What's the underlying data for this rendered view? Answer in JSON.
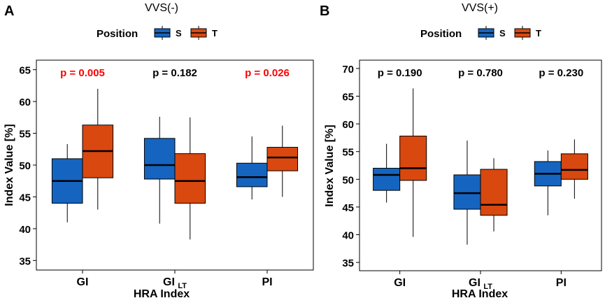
{
  "colors": {
    "S": "#1565c0",
    "T": "#d9480f",
    "sig": "#ff0000",
    "nonsig": "#000000",
    "frame": "#000000",
    "median": "#000000"
  },
  "chart_data": [
    {
      "type": "box",
      "panel_label": "A",
      "title": "VVS(-)",
      "legend_title": "Position",
      "legend": [
        {
          "key": "S",
          "label": "S"
        },
        {
          "key": "T",
          "label": "T"
        }
      ],
      "xlabel": "HRA Index",
      "ylabel": "Index Value [%]",
      "ylim": [
        33.5,
        66.5
      ],
      "yticks": [
        35,
        40,
        45,
        50,
        55,
        60,
        65
      ],
      "categories": [
        {
          "label": "GI",
          "sub": ""
        },
        {
          "label": "GI",
          "sub": "LT"
        },
        {
          "label": "PI",
          "sub": ""
        }
      ],
      "pvalues": [
        {
          "text": "p = 0.005",
          "sig": true
        },
        {
          "text": "p = 0.182",
          "sig": false
        },
        {
          "text": "p = 0.026",
          "sig": true
        }
      ],
      "series": [
        {
          "name": "S",
          "boxes": [
            {
              "min": 41.0,
              "q1": 44.0,
              "median": 47.5,
              "q3": 51.0,
              "max": 53.3
            },
            {
              "min": 40.8,
              "q1": 47.8,
              "median": 50.0,
              "q3": 54.2,
              "max": 57.6
            },
            {
              "min": 44.6,
              "q1": 46.6,
              "median": 48.1,
              "q3": 50.3,
              "max": 54.5
            }
          ]
        },
        {
          "name": "T",
          "boxes": [
            {
              "min": 43.0,
              "q1": 48.0,
              "median": 52.2,
              "q3": 56.3,
              "max": 62.0
            },
            {
              "min": 38.3,
              "q1": 44.0,
              "median": 47.5,
              "q3": 51.8,
              "max": 57.5
            },
            {
              "min": 45.0,
              "q1": 49.1,
              "median": 51.2,
              "q3": 52.8,
              "max": 56.2
            }
          ]
        }
      ]
    },
    {
      "type": "box",
      "panel_label": "B",
      "title": "VVS(+)",
      "legend_title": "Position",
      "legend": [
        {
          "key": "S",
          "label": "S"
        },
        {
          "key": "T",
          "label": "T"
        }
      ],
      "xlabel": "HRA Index",
      "ylabel": "Index Value [%]",
      "ylim": [
        33.5,
        71.5
      ],
      "yticks": [
        35,
        40,
        45,
        50,
        55,
        60,
        65,
        70
      ],
      "categories": [
        {
          "label": "GI",
          "sub": ""
        },
        {
          "label": "GI",
          "sub": "LT"
        },
        {
          "label": "PI",
          "sub": ""
        }
      ],
      "pvalues": [
        {
          "text": "p = 0.190",
          "sig": false
        },
        {
          "text": "p = 0.780",
          "sig": false
        },
        {
          "text": "p = 0.230",
          "sig": false
        }
      ],
      "series": [
        {
          "name": "S",
          "boxes": [
            {
              "min": 45.8,
              "q1": 48.0,
              "median": 50.8,
              "q3": 52.0,
              "max": 56.4
            },
            {
              "min": 38.2,
              "q1": 44.6,
              "median": 47.5,
              "q3": 50.8,
              "max": 57.0
            },
            {
              "min": 43.5,
              "q1": 48.8,
              "median": 51.0,
              "q3": 53.2,
              "max": 55.2
            }
          ]
        },
        {
          "name": "T",
          "boxes": [
            {
              "min": 39.6,
              "q1": 49.8,
              "median": 52.0,
              "q3": 57.8,
              "max": 66.4
            },
            {
              "min": 40.6,
              "q1": 43.5,
              "median": 45.4,
              "q3": 51.8,
              "max": 53.8
            },
            {
              "min": 46.5,
              "q1": 50.0,
              "median": 51.7,
              "q3": 54.6,
              "max": 57.2
            }
          ]
        }
      ]
    }
  ]
}
